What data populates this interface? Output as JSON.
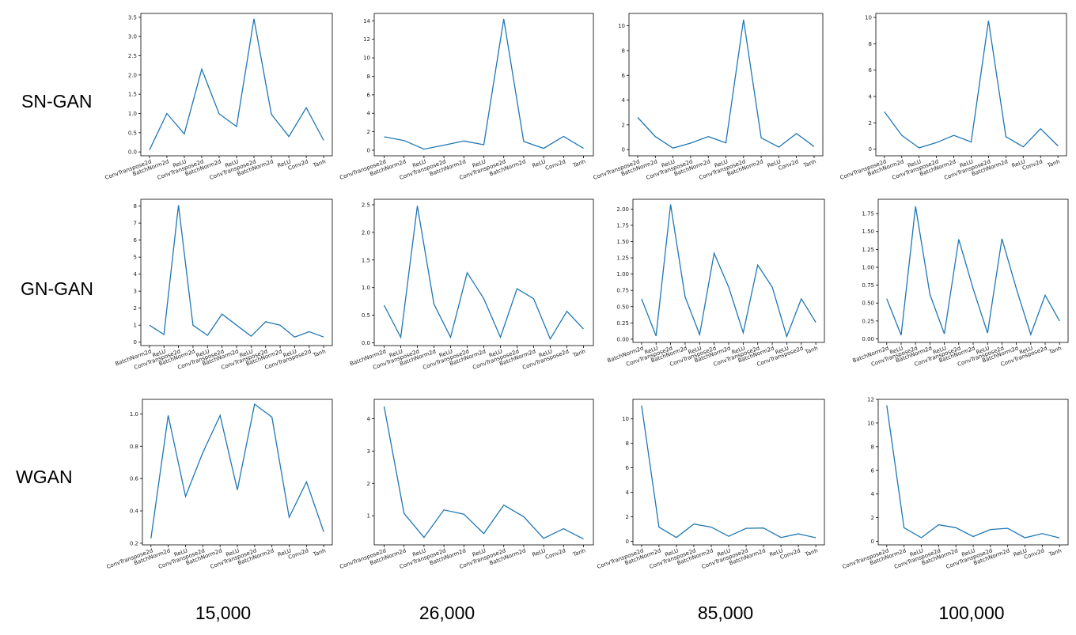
{
  "row_labels": [
    "SN-GAN",
    "GN-GAN",
    "WGAN"
  ],
  "column_labels": [
    "15,000",
    "26,000",
    "85,000",
    "100,000"
  ],
  "style": {
    "line_color": "#1f77b4",
    "axis_color": "#000000"
  },
  "chart_data": [
    {
      "type": "line",
      "row": "SN-GAN",
      "column": "15,000",
      "categories": [
        "ConvTranspose2d",
        "BatchNorm2d",
        "ReLU",
        "ConvTranspose2d",
        "BatchNorm2d",
        "ReLU",
        "ConvTranspose2d",
        "BatchNorm2d",
        "ReLU",
        "Conv2d",
        "Tanh"
      ],
      "values": [
        0.05,
        1.0,
        0.47,
        2.15,
        0.99,
        0.66,
        3.46,
        0.98,
        0.4,
        1.15,
        0.3
      ],
      "ylim": [
        -0.1,
        3.6
      ],
      "yticks": [
        0.0,
        0.5,
        1.0,
        1.5,
        2.0,
        2.5,
        3.0,
        3.5
      ],
      "ytick_decimals": 1
    },
    {
      "type": "line",
      "row": "SN-GAN",
      "column": "26,000",
      "categories": [
        "ConvTranspose2d",
        "BatchNorm2d",
        "ReLU",
        "ConvTranspose2d",
        "BatchNorm2d",
        "ReLU",
        "ConvTranspose2d",
        "BatchNorm2d",
        "ReLU",
        "Conv2d",
        "Tanh"
      ],
      "values": [
        1.45,
        1.05,
        0.12,
        0.55,
        1.0,
        0.6,
        14.2,
        0.95,
        0.2,
        1.5,
        0.2
      ],
      "ylim": [
        -0.6,
        14.8
      ],
      "yticks": [
        0,
        2,
        4,
        6,
        8,
        10,
        12,
        14
      ],
      "ytick_decimals": 0
    },
    {
      "type": "line",
      "row": "SN-GAN",
      "column": "85,000",
      "categories": [
        "ConvTranspose2d",
        "BatchNorm2d",
        "ReLU",
        "ConvTranspose2d",
        "BatchNorm2d",
        "ReLU",
        "ConvTranspose2d",
        "BatchNorm2d",
        "ReLU",
        "Conv2d",
        "Tanh"
      ],
      "values": [
        2.6,
        1.05,
        0.12,
        0.52,
        1.05,
        0.55,
        10.5,
        0.95,
        0.2,
        1.3,
        0.25
      ],
      "ylim": [
        -0.5,
        11.0
      ],
      "yticks": [
        0,
        2,
        4,
        6,
        8,
        10
      ],
      "ytick_decimals": 0
    },
    {
      "type": "line",
      "row": "SN-GAN",
      "column": "100,000",
      "categories": [
        "ConvTranspose2d",
        "BatchNorm2d",
        "ReLU",
        "ConvTranspose2d",
        "BatchNorm2d",
        "ReLU",
        "ConvTranspose2d",
        "BatchNorm2d",
        "ReLU",
        "Conv2d",
        "Tanh"
      ],
      "values": [
        2.85,
        1.05,
        0.1,
        0.5,
        1.05,
        0.55,
        9.75,
        0.95,
        0.18,
        1.55,
        0.25
      ],
      "ylim": [
        -0.5,
        10.3
      ],
      "yticks": [
        0,
        2,
        4,
        6,
        8,
        10
      ],
      "ytick_decimals": 0
    },
    {
      "type": "line",
      "row": "GN-GAN",
      "column": "15,000",
      "categories": [
        "BatchNorm2d",
        "ReLU",
        "ConvTranspose2d",
        "BatchNorm2d",
        "ReLU",
        "ConvTranspose2d",
        "BatchNorm2d",
        "ReLU",
        "ConvTranspose2d",
        "BatchNorm2d",
        "ReLU",
        "ConvTranspose2d",
        "Tanh"
      ],
      "values": [
        1.0,
        0.45,
        8.05,
        1.0,
        0.4,
        1.65,
        1.0,
        0.35,
        1.2,
        1.0,
        0.3,
        0.62,
        0.3
      ],
      "ylim": [
        -0.2,
        8.4
      ],
      "yticks": [
        0,
        1,
        2,
        3,
        4,
        5,
        6,
        7,
        8
      ],
      "ytick_decimals": 0
    },
    {
      "type": "line",
      "row": "GN-GAN",
      "column": "26,000",
      "categories": [
        "BatchNorm2d",
        "ReLU",
        "ConvTranspose2d",
        "BatchNorm2d",
        "ReLU",
        "ConvTranspose2d",
        "BatchNorm2d",
        "ReLU",
        "ConvTranspose2d",
        "BatchNorm2d",
        "ReLU",
        "ConvTranspose2d",
        "Tanh"
      ],
      "values": [
        0.68,
        0.1,
        2.48,
        0.7,
        0.1,
        1.27,
        0.8,
        0.1,
        0.98,
        0.8,
        0.07,
        0.57,
        0.25
      ],
      "ylim": [
        -0.05,
        2.6
      ],
      "yticks": [
        0.0,
        0.5,
        1.0,
        1.5,
        2.0,
        2.5
      ],
      "ytick_decimals": 1
    },
    {
      "type": "line",
      "row": "GN-GAN",
      "column": "85,000",
      "categories": [
        "BatchNorm2d",
        "ReLU",
        "ConvTranspose2d",
        "BatchNorm2d",
        "ReLU",
        "ConvTranspose2d",
        "BatchNorm2d",
        "ReLU",
        "ConvTranspose2d",
        "BatchNorm2d",
        "ReLU",
        "ConvTranspose2d",
        "Tanh"
      ],
      "values": [
        0.62,
        0.05,
        2.07,
        0.65,
        0.07,
        1.32,
        0.8,
        0.1,
        1.14,
        0.8,
        0.04,
        0.62,
        0.26
      ],
      "ylim": [
        -0.05,
        2.15
      ],
      "yticks": [
        0.0,
        0.25,
        0.5,
        0.75,
        1.0,
        1.25,
        1.5,
        1.75,
        2.0
      ],
      "ytick_decimals": 2
    },
    {
      "type": "line",
      "row": "GN-GAN",
      "column": "100,000",
      "categories": [
        "BatchNorm2d",
        "ReLU",
        "ConvTranspose2d",
        "BatchNorm2d",
        "ReLU",
        "ConvTranspose2d",
        "BatchNorm2d",
        "ReLU",
        "ConvTranspose2d",
        "BatchNorm2d",
        "ReLU",
        "ConvTranspose2d",
        "Tanh"
      ],
      "values": [
        0.56,
        0.05,
        1.85,
        0.62,
        0.07,
        1.39,
        0.7,
        0.08,
        1.4,
        0.7,
        0.06,
        0.61,
        0.25
      ],
      "ylim": [
        -0.05,
        1.95
      ],
      "yticks": [
        0.0,
        0.25,
        0.5,
        0.75,
        1.0,
        1.25,
        1.5,
        1.75
      ],
      "ytick_decimals": 2
    },
    {
      "type": "line",
      "row": "WGAN",
      "column": "15,000",
      "categories": [
        "ConvTranspose2d",
        "BatchNorm2d",
        "ReLU",
        "ConvTranspose2d",
        "BatchNorm2d",
        "ReLU",
        "ConvTranspose2d",
        "BatchNorm2d",
        "ReLU",
        "Conv2d",
        "Tanh"
      ],
      "values": [
        0.23,
        0.99,
        0.49,
        0.76,
        0.99,
        0.53,
        1.06,
        0.98,
        0.36,
        0.58,
        0.27
      ],
      "ylim": [
        0.19,
        1.09
      ],
      "yticks": [
        0.2,
        0.4,
        0.6,
        0.8,
        1.0
      ],
      "ytick_decimals": 1
    },
    {
      "type": "line",
      "row": "WGAN",
      "column": "26,000",
      "categories": [
        "ConvTranspose2d",
        "BatchNorm2d",
        "ReLU",
        "ConvTranspose2d",
        "BatchNorm2d",
        "ReLU",
        "ConvTranspose2d",
        "BatchNorm2d",
        "ReLU",
        "Conv2d",
        "Tanh"
      ],
      "values": [
        4.38,
        1.07,
        0.33,
        1.18,
        1.05,
        0.45,
        1.33,
        0.97,
        0.3,
        0.6,
        0.28
      ],
      "ylim": [
        0.1,
        4.6
      ],
      "yticks": [
        1,
        2,
        3,
        4
      ],
      "ytick_decimals": 0
    },
    {
      "type": "line",
      "row": "WGAN",
      "column": "85,000",
      "categories": [
        "ConvTranspose2d",
        "BatchNorm2d",
        "ReLU",
        "ConvTranspose2d",
        "BatchNorm2d",
        "ReLU",
        "ConvTranspose2d",
        "BatchNorm2d",
        "ReLU",
        "Conv2d",
        "Tanh"
      ],
      "values": [
        11.1,
        1.15,
        0.3,
        1.4,
        1.15,
        0.4,
        1.05,
        1.08,
        0.3,
        0.6,
        0.28
      ],
      "ylim": [
        -0.3,
        11.6
      ],
      "yticks": [
        0,
        2,
        4,
        6,
        8,
        10
      ],
      "ytick_decimals": 0
    },
    {
      "type": "line",
      "row": "WGAN",
      "column": "100,000",
      "categories": [
        "ConvTranspose2d",
        "BatchNorm2d",
        "ReLU",
        "ConvTranspose2d",
        "BatchNorm2d",
        "ReLU",
        "ConvTranspose2d",
        "BatchNorm2d",
        "ReLU",
        "Conv2d",
        "Tanh"
      ],
      "values": [
        11.5,
        1.15,
        0.3,
        1.4,
        1.15,
        0.4,
        1.0,
        1.1,
        0.3,
        0.65,
        0.28
      ],
      "ylim": [
        -0.3,
        12.0
      ],
      "yticks": [
        0,
        2,
        4,
        6,
        8,
        10,
        12
      ],
      "ytick_decimals": 0
    }
  ]
}
